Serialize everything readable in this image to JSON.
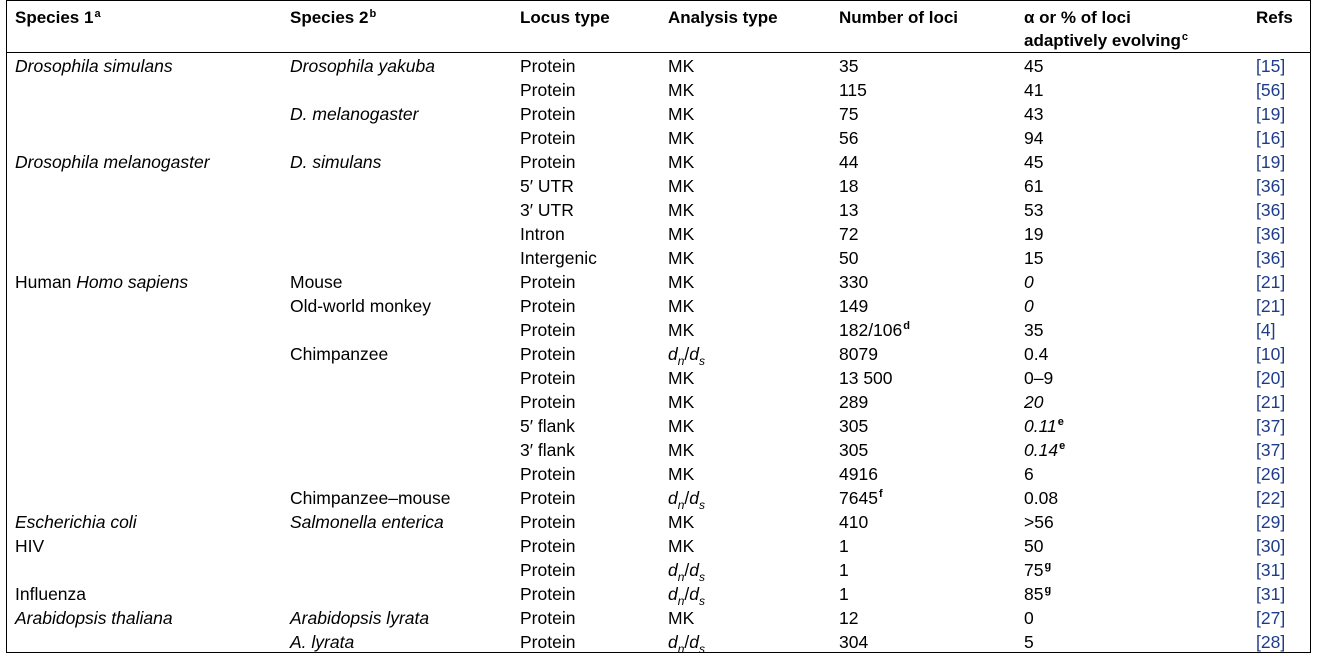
{
  "headers": {
    "species1": "Species 1",
    "species1_sup": "a",
    "species2": "Species 2",
    "species2_sup": "b",
    "locus": "Locus type",
    "analysis": "Analysis type",
    "loci": "Number of loci",
    "alpha_line1": "α or % of loci",
    "alpha_line2": "adaptively evolving",
    "alpha_sup": "c",
    "refs": "Refs"
  },
  "rows": [
    {
      "s1": "Drosophila simulans",
      "s1i": true,
      "s2": "Drosophila yakuba",
      "s2i": true,
      "locus": "Protein",
      "analysis": "MK",
      "loci": "35",
      "alpha": "45",
      "ref": "[15]"
    },
    {
      "locus": "Protein",
      "analysis": "MK",
      "loci": "115",
      "alpha": "41",
      "ref": "[56]"
    },
    {
      "s2": "D. melanogaster",
      "s2i": true,
      "locus": "Protein",
      "analysis": "MK",
      "loci": "75",
      "alpha": "43",
      "ref": "[19]"
    },
    {
      "locus": "Protein",
      "analysis": "MK",
      "loci": "56",
      "alpha": "94",
      "ref": "[16]"
    },
    {
      "s1": "Drosophila melanogaster",
      "s1i": true,
      "s2": "D. simulans",
      "s2i": true,
      "locus": "Protein",
      "analysis": "MK",
      "loci": "44",
      "alpha": "45",
      "ref": "[19]"
    },
    {
      "locus": "5′ UTR",
      "analysis": "MK",
      "loci": "18",
      "alpha": "61",
      "ref": "[36]"
    },
    {
      "locus": "3′ UTR",
      "analysis": "MK",
      "loci": "13",
      "alpha": "53",
      "ref": "[36]"
    },
    {
      "locus": "Intron",
      "analysis": "MK",
      "loci": "72",
      "alpha": "19",
      "ref": "[36]"
    },
    {
      "locus": "Intergenic",
      "analysis": "MK",
      "loci": "50",
      "alpha": "15",
      "ref": "[36]"
    },
    {
      "s1": "Human",
      "s1b": "Homo sapiens",
      "s2": "Mouse",
      "locus": "Protein",
      "analysis": "MK",
      "loci": "330",
      "alpha": "0",
      "alphai": true,
      "ref": "[21]"
    },
    {
      "s2": "Old-world monkey",
      "locus": "Protein",
      "analysis": "MK",
      "loci": "149",
      "alpha": "0",
      "alphai": true,
      "ref": "[21]"
    },
    {
      "locus": "Protein",
      "analysis": "MK",
      "loci": "182/106",
      "loci_sup": "d",
      "alpha": "35",
      "ref": "[4]"
    },
    {
      "s2": "Chimpanzee",
      "locus": "Protein",
      "analysis": "dn/ds",
      "loci": "8079",
      "alpha": "0.4",
      "ref": "[10]"
    },
    {
      "locus": "Protein",
      "analysis": "MK",
      "loci": "13 500",
      "alpha": "0–9",
      "ref": "[20]"
    },
    {
      "locus": "Protein",
      "analysis": "MK",
      "loci": "289",
      "alpha": "20",
      "alphai": true,
      "ref": "[21]"
    },
    {
      "locus": "5′ flank",
      "analysis": "MK",
      "loci": "305",
      "alpha": "0.11",
      "alphai": true,
      "alpha_sup": "e",
      "ref": "[37]"
    },
    {
      "locus": "3′ flank",
      "analysis": "MK",
      "loci": "305",
      "alpha": "0.14",
      "alphai": true,
      "alpha_sup": "e",
      "ref": "[37]"
    },
    {
      "locus": "Protein",
      "analysis": "MK",
      "loci": "4916",
      "alpha": "6",
      "ref": "[26]"
    },
    {
      "s2": "Chimpanzee–mouse",
      "locus": "Protein",
      "analysis": "dn/ds",
      "loci": "7645",
      "loci_sup": "f",
      "alpha": "0.08",
      "ref": "[22]"
    },
    {
      "s1": "Escherichia coli",
      "s1i": true,
      "s2": "Salmonella enterica",
      "s2i": true,
      "locus": "Protein",
      "analysis": "MK",
      "loci": "410",
      "alpha": ">56",
      "ref": "[29]"
    },
    {
      "s1": "HIV",
      "locus": "Protein",
      "analysis": "MK",
      "loci": "1",
      "alpha": "50",
      "ref": "[30]"
    },
    {
      "locus": "Protein",
      "analysis": "dn/ds",
      "loci": "1",
      "alpha": "75",
      "alpha_sup": "g",
      "ref": "[31]"
    },
    {
      "s1": "Influenza",
      "locus": "Protein",
      "analysis": "dn/ds",
      "loci": "1",
      "alpha": "85",
      "alpha_sup": "g",
      "ref": "[31]"
    },
    {
      "s1": "Arabidopsis thaliana",
      "s1i": true,
      "s2": "Arabidopsis lyrata",
      "s2i": true,
      "locus": "Protein",
      "analysis": "MK",
      "loci": "12",
      "alpha": "0",
      "ref": "[27]"
    },
    {
      "s2": "A. lyrata",
      "s2i": true,
      "locus": "Protein",
      "analysis": "dn/ds",
      "loci": "304",
      "alpha": "5",
      "ref": "[28]"
    }
  ]
}
